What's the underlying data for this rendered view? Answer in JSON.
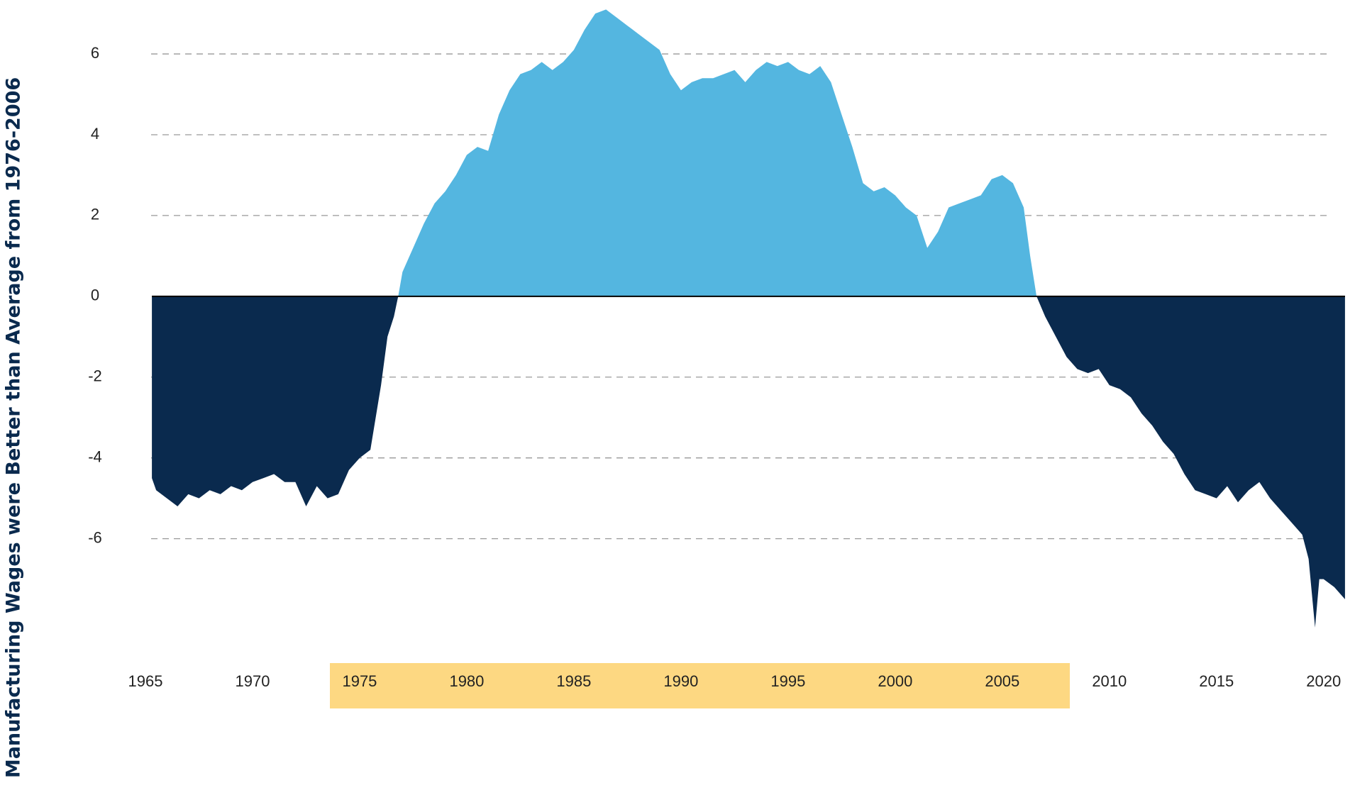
{
  "chart_data": {
    "type": "area",
    "y_label": "Manufacturing Wages were Better than Average from 1976-2006",
    "x": [
      1965.3,
      1965.5,
      1966,
      1966.5,
      1967,
      1967.5,
      1968,
      1968.5,
      1969,
      1969.5,
      1970,
      1970.5,
      1971,
      1971.5,
      1972,
      1972.5,
      1973,
      1973.5,
      1974,
      1974.5,
      1975,
      1975.5,
      1976,
      1976.3,
      1976.6,
      1976.8,
      1977,
      1977.5,
      1978,
      1978.5,
      1979,
      1979.5,
      1980,
      1980.5,
      1981,
      1981.5,
      1982,
      1982.5,
      1983,
      1983.5,
      1984,
      1984.5,
      1985,
      1985.5,
      1986,
      1986.5,
      1987,
      1987.5,
      1988,
      1988.5,
      1989,
      1989.5,
      1990,
      1990.5,
      1991,
      1991.5,
      1992,
      1992.5,
      1993,
      1993.5,
      1994,
      1994.5,
      1995,
      1995.5,
      1996,
      1996.5,
      1997,
      1997.5,
      1998,
      1998.5,
      1999,
      1999.5,
      2000,
      2000.5,
      2001,
      2001.5,
      2002,
      2002.5,
      2003,
      2003.5,
      2004,
      2004.5,
      2005,
      2005.5,
      2006,
      2006.3,
      2006.6,
      2007,
      2007.5,
      2008,
      2008.5,
      2009,
      2009.5,
      2010,
      2010.5,
      2011,
      2011.5,
      2012,
      2012.5,
      2013,
      2013.5,
      2014,
      2014.5,
      2015,
      2015.5,
      2016,
      2016.5,
      2017,
      2017.5,
      2018,
      2018.5,
      2019,
      2019.3,
      2019.6,
      2019.8,
      2020,
      2020.5,
      2021
    ],
    "values": [
      -4.5,
      -4.8,
      -5.0,
      -5.2,
      -4.9,
      -5.0,
      -4.8,
      -4.9,
      -4.7,
      -4.8,
      -4.6,
      -4.5,
      -4.4,
      -4.6,
      -4.6,
      -5.2,
      -4.7,
      -5.0,
      -4.9,
      -4.3,
      -4.0,
      -3.8,
      -2.2,
      -1.0,
      -0.5,
      0,
      0.6,
      1.2,
      1.8,
      2.3,
      2.6,
      3.0,
      3.5,
      3.7,
      3.6,
      4.5,
      5.1,
      5.5,
      5.6,
      5.8,
      5.6,
      5.8,
      6.1,
      6.6,
      7.0,
      7.1,
      6.9,
      6.7,
      6.5,
      6.3,
      6.1,
      5.5,
      5.1,
      5.3,
      5.4,
      5.4,
      5.5,
      5.6,
      5.3,
      5.6,
      5.8,
      5.7,
      5.8,
      5.6,
      5.5,
      5.7,
      5.3,
      4.5,
      3.7,
      2.8,
      2.6,
      2.7,
      2.5,
      2.2,
      2.0,
      1.2,
      1.6,
      2.2,
      2.3,
      2.4,
      2.5,
      2.9,
      3.0,
      2.8,
      2.2,
      1.0,
      0,
      -0.5,
      -1.0,
      -1.5,
      -1.8,
      -1.9,
      -1.8,
      -2.2,
      -2.3,
      -2.5,
      -2.9,
      -3.2,
      -3.6,
      -3.9,
      -4.4,
      -4.8,
      -4.9,
      -5.0,
      -4.7,
      -5.1,
      -4.8,
      -4.6,
      -5.0,
      -5.3,
      -5.6,
      -5.9,
      -6.5,
      -8.2,
      -7.0,
      -7.0,
      -7.2,
      -7.5
    ],
    "positive_color": "#54b6e0",
    "negative_color": "#0a2a4e",
    "xlim": [
      1965,
      2021.3
    ],
    "xticks": [
      1965,
      1970,
      1975,
      1980,
      1985,
      1990,
      1995,
      2000,
      2005,
      2010,
      2015,
      2020
    ],
    "ylim": [
      -8.5,
      7.3
    ],
    "yticks": [
      6,
      4,
      2,
      0,
      -2,
      -4,
      -6
    ],
    "grid": true
  }
}
